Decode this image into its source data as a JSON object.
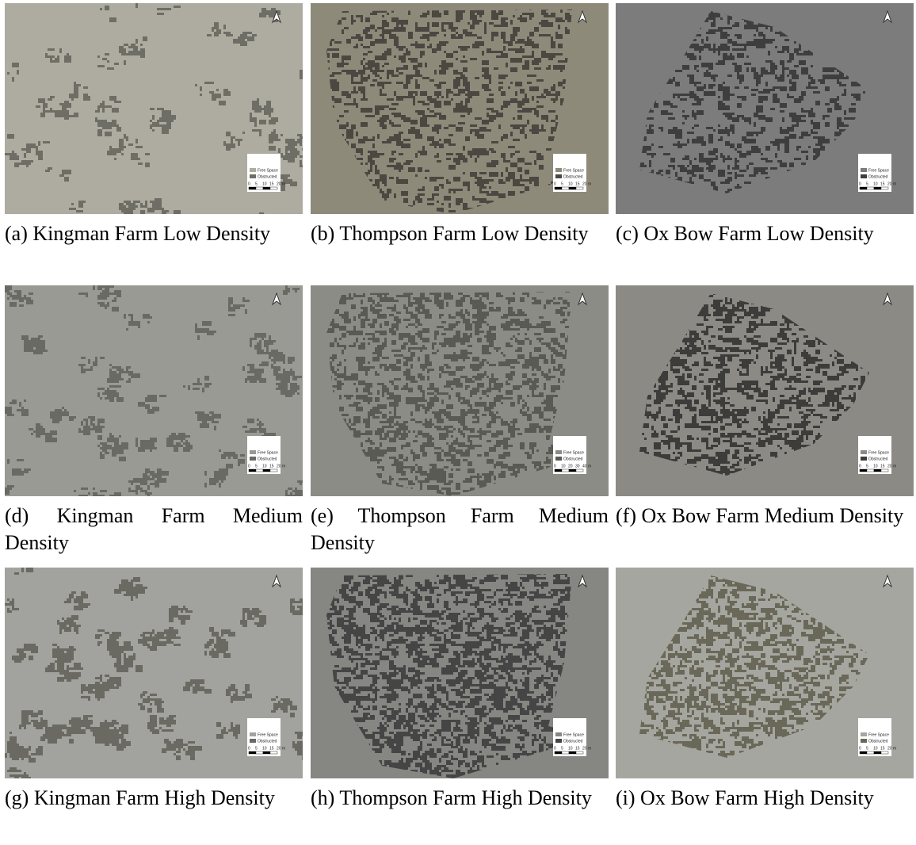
{
  "panels": [
    {
      "label": "(a)",
      "caption": "Kingman Farm Low Density",
      "legend": [
        "Free Space",
        "Obstructed"
      ],
      "scale": [
        "0",
        "5",
        "10",
        "15",
        "20 m"
      ]
    },
    {
      "label": "(b)",
      "caption": "Thompson Farm Low Density",
      "legend": [
        "Free Space",
        "Obstructed"
      ],
      "scale": [
        "0",
        "5",
        "10",
        "15",
        "20 m"
      ]
    },
    {
      "label": "(c)",
      "caption": "Ox Bow Farm Low Density",
      "legend": [
        "Free Space",
        "Obstructed"
      ],
      "scale": [
        "0",
        "5",
        "10",
        "15",
        "20 m"
      ]
    },
    {
      "label": "(d)",
      "caption": "Kingman Farm Medium Density",
      "legend": [
        "Free Space",
        "Obstructed"
      ],
      "scale": [
        "0",
        "5",
        "10",
        "15",
        "20 m"
      ]
    },
    {
      "label": "(e)",
      "caption": "Thompson Farm Medium Density",
      "legend": [
        "Free Space",
        "Obstructed"
      ],
      "scale": [
        "0",
        "10",
        "20",
        "30",
        "40 m"
      ]
    },
    {
      "label": "(f)",
      "caption": "Ox Bow Farm Medium Density",
      "legend": [
        "Free Space",
        "Obstructed"
      ],
      "scale": [
        "0",
        "5",
        "10",
        "15",
        "20 m"
      ]
    },
    {
      "label": "(g)",
      "caption": "Kingman Farm High Density",
      "legend": [
        "Free Space",
        "Obstructed"
      ],
      "scale": [
        "0",
        "5",
        "10",
        "15",
        "20 m"
      ]
    },
    {
      "label": "(h)",
      "caption": "Thompson Farm High Density",
      "legend": [
        "Free Space",
        "Obstructed"
      ],
      "scale": [
        "0",
        "5",
        "10",
        "15",
        "20 m"
      ]
    },
    {
      "label": "(i)",
      "caption": "Ox Bow Farm High Density",
      "legend": [
        "Free Space",
        "Obstructed"
      ],
      "scale": [
        "0",
        "5",
        "10",
        "15",
        "20 m"
      ]
    }
  ]
}
